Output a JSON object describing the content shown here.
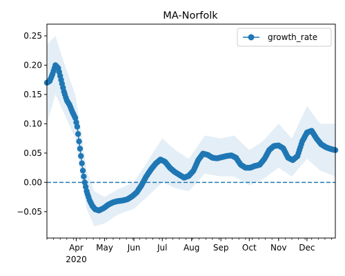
{
  "chart_data": {
    "type": "line",
    "title": "MA-Norfolk",
    "xlabel": "",
    "ylabel": "",
    "x_range": [
      "2020-03-01",
      "2020-12-31"
    ],
    "ylim": [
      -0.095,
      0.27
    ],
    "y_ticks": [
      -0.05,
      0.0,
      0.05,
      0.1,
      0.15,
      0.2,
      0.25
    ],
    "y_tick_labels": [
      "−0.05",
      "0.00",
      "0.05",
      "0.10",
      "0.15",
      "0.20",
      "0.25"
    ],
    "x_ticks": [
      {
        "date": "2020-04-01",
        "label": "Apr",
        "sublabel": "2020"
      },
      {
        "date": "2020-05-01",
        "label": "May",
        "sublabel": ""
      },
      {
        "date": "2020-06-01",
        "label": "Jun",
        "sublabel": ""
      },
      {
        "date": "2020-07-01",
        "label": "Jul",
        "sublabel": ""
      },
      {
        "date": "2020-08-01",
        "label": "Aug",
        "sublabel": ""
      },
      {
        "date": "2020-09-01",
        "label": "Sep",
        "sublabel": ""
      },
      {
        "date": "2020-10-01",
        "label": "Oct",
        "sublabel": ""
      },
      {
        "date": "2020-11-01",
        "label": "Nov",
        "sublabel": ""
      },
      {
        "date": "2020-12-01",
        "label": "Dec",
        "sublabel": ""
      }
    ],
    "grid": false,
    "legend": {
      "position": "top-right",
      "entries": [
        "growth_rate"
      ]
    },
    "reference_line": {
      "y": 0.0,
      "style": "dashed"
    },
    "colors": {
      "line": "#1f77b4",
      "band": "#1f77b4",
      "reference": "#1f77b4"
    },
    "series": [
      {
        "name": "growth_rate",
        "points": [
          [
            "2020-03-01",
            0.17
          ],
          [
            "2020-03-04",
            0.173
          ],
          [
            "2020-03-07",
            0.185
          ],
          [
            "2020-03-10",
            0.2
          ],
          [
            "2020-03-13",
            0.195
          ],
          [
            "2020-03-16",
            0.175
          ],
          [
            "2020-03-19",
            0.155
          ],
          [
            "2020-03-22",
            0.14
          ],
          [
            "2020-03-25",
            0.132
          ],
          [
            "2020-03-28",
            0.12
          ],
          [
            "2020-03-31",
            0.11
          ],
          [
            "2020-04-02",
            0.095
          ],
          [
            "2020-04-04",
            0.07
          ],
          [
            "2020-04-06",
            0.045
          ],
          [
            "2020-04-08",
            0.02
          ],
          [
            "2020-04-10",
            0.0
          ],
          [
            "2020-04-12",
            -0.015
          ],
          [
            "2020-04-15",
            -0.03
          ],
          [
            "2020-04-18",
            -0.04
          ],
          [
            "2020-04-21",
            -0.046
          ],
          [
            "2020-04-25",
            -0.048
          ],
          [
            "2020-04-30",
            -0.044
          ],
          [
            "2020-05-05",
            -0.038
          ],
          [
            "2020-05-10",
            -0.034
          ],
          [
            "2020-05-15",
            -0.032
          ],
          [
            "2020-05-20",
            -0.031
          ],
          [
            "2020-05-25",
            -0.029
          ],
          [
            "2020-05-30",
            -0.024
          ],
          [
            "2020-06-04",
            -0.017
          ],
          [
            "2020-06-09",
            -0.005
          ],
          [
            "2020-06-14",
            0.01
          ],
          [
            "2020-06-19",
            0.022
          ],
          [
            "2020-06-24",
            0.032
          ],
          [
            "2020-06-29",
            0.039
          ],
          [
            "2020-07-04",
            0.035
          ],
          [
            "2020-07-09",
            0.025
          ],
          [
            "2020-07-14",
            0.018
          ],
          [
            "2020-07-19",
            0.013
          ],
          [
            "2020-07-24",
            0.008
          ],
          [
            "2020-07-29",
            0.011
          ],
          [
            "2020-08-03",
            0.02
          ],
          [
            "2020-08-08",
            0.038
          ],
          [
            "2020-08-13",
            0.049
          ],
          [
            "2020-08-18",
            0.047
          ],
          [
            "2020-08-23",
            0.042
          ],
          [
            "2020-08-28",
            0.041
          ],
          [
            "2020-09-02",
            0.043
          ],
          [
            "2020-09-07",
            0.045
          ],
          [
            "2020-09-12",
            0.046
          ],
          [
            "2020-09-17",
            0.042
          ],
          [
            "2020-09-22",
            0.03
          ],
          [
            "2020-09-27",
            0.025
          ],
          [
            "2020-10-02",
            0.025
          ],
          [
            "2020-10-07",
            0.028
          ],
          [
            "2020-10-12",
            0.03
          ],
          [
            "2020-10-17",
            0.04
          ],
          [
            "2020-10-22",
            0.055
          ],
          [
            "2020-10-27",
            0.062
          ],
          [
            "2020-11-01",
            0.063
          ],
          [
            "2020-11-06",
            0.058
          ],
          [
            "2020-11-11",
            0.042
          ],
          [
            "2020-11-16",
            0.038
          ],
          [
            "2020-11-21",
            0.045
          ],
          [
            "2020-11-26",
            0.07
          ],
          [
            "2020-12-01",
            0.085
          ],
          [
            "2020-12-06",
            0.088
          ],
          [
            "2020-12-11",
            0.075
          ],
          [
            "2020-12-16",
            0.065
          ],
          [
            "2020-12-21",
            0.06
          ],
          [
            "2020-12-26",
            0.057
          ],
          [
            "2020-12-31",
            0.055
          ]
        ],
        "band": [
          [
            "2020-03-01",
            0.1,
            0.235
          ],
          [
            "2020-03-10",
            0.15,
            0.25
          ],
          [
            "2020-03-20",
            0.115,
            0.2
          ],
          [
            "2020-03-31",
            0.075,
            0.15
          ],
          [
            "2020-04-06",
            0.01,
            0.09
          ],
          [
            "2020-04-12",
            -0.045,
            0.02
          ],
          [
            "2020-04-20",
            -0.075,
            -0.015
          ],
          [
            "2020-05-01",
            -0.07,
            -0.025
          ],
          [
            "2020-05-15",
            -0.055,
            -0.012
          ],
          [
            "2020-06-01",
            -0.045,
            0.0
          ],
          [
            "2020-06-15",
            -0.025,
            0.035
          ],
          [
            "2020-07-01",
            0.0,
            0.075
          ],
          [
            "2020-07-15",
            -0.01,
            0.055
          ],
          [
            "2020-07-29",
            -0.015,
            0.04
          ],
          [
            "2020-08-15",
            0.015,
            0.08
          ],
          [
            "2020-09-01",
            0.01,
            0.075
          ],
          [
            "2020-09-15",
            0.01,
            0.08
          ],
          [
            "2020-10-01",
            -0.005,
            0.055
          ],
          [
            "2020-10-15",
            0.005,
            0.07
          ],
          [
            "2020-11-01",
            0.025,
            0.1
          ],
          [
            "2020-11-15",
            0.01,
            0.075
          ],
          [
            "2020-12-01",
            0.04,
            0.13
          ],
          [
            "2020-12-15",
            0.02,
            0.1
          ],
          [
            "2020-12-31",
            0.01,
            0.1
          ]
        ]
      }
    ]
  }
}
